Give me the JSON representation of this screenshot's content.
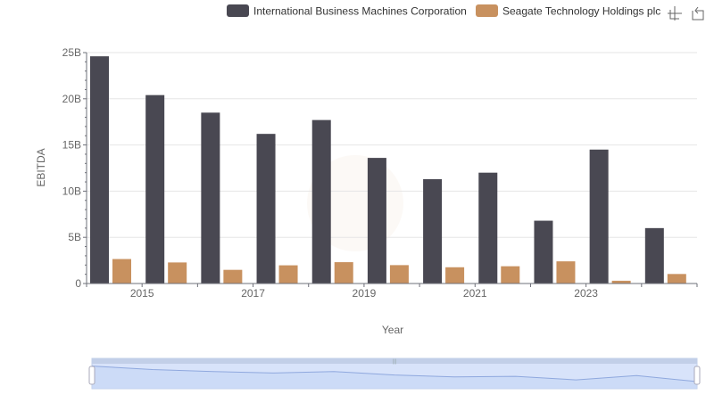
{
  "colors": {
    "ibm": "#494852",
    "seagate": "#c8915f",
    "grid": "#e6e6e6",
    "axis": "#6e7079",
    "zoom_fill": "#d8e3fa",
    "zoom_border": "#c2cfe8",
    "zoom_line": "#8fa8de"
  },
  "toolbar": {
    "zoom_icon": "zoom-crosshair-icon",
    "restore_icon": "restore-icon"
  },
  "chart_data": {
    "type": "bar",
    "x": [
      2014,
      2015,
      2016,
      2017,
      2018,
      2019,
      2020,
      2021,
      2022,
      2023,
      2024
    ],
    "x_tick_labels": [
      "2015",
      "2017",
      "2019",
      "2021",
      "2023"
    ],
    "xlabel": "Year",
    "ylabel": "EBITDA",
    "ylim": [
      0,
      25000000000
    ],
    "y_tick_labels": [
      "0",
      "5B",
      "10B",
      "15B",
      "20B",
      "25B"
    ],
    "grid": true,
    "legend_position": "top-right",
    "series": [
      {
        "name": "International Business Machines Corporation",
        "values": [
          24600000000,
          20400000000,
          18500000000,
          16200000000,
          17700000000,
          13600000000,
          11300000000,
          12000000000,
          6800000000,
          14500000000,
          6000000000
        ]
      },
      {
        "name": "Seagate Technology Holdings plc",
        "values": [
          2650000000,
          2280000000,
          1480000000,
          1970000000,
          2310000000,
          1990000000,
          1760000000,
          1870000000,
          2400000000,
          300000000,
          1030000000
        ]
      }
    ]
  }
}
